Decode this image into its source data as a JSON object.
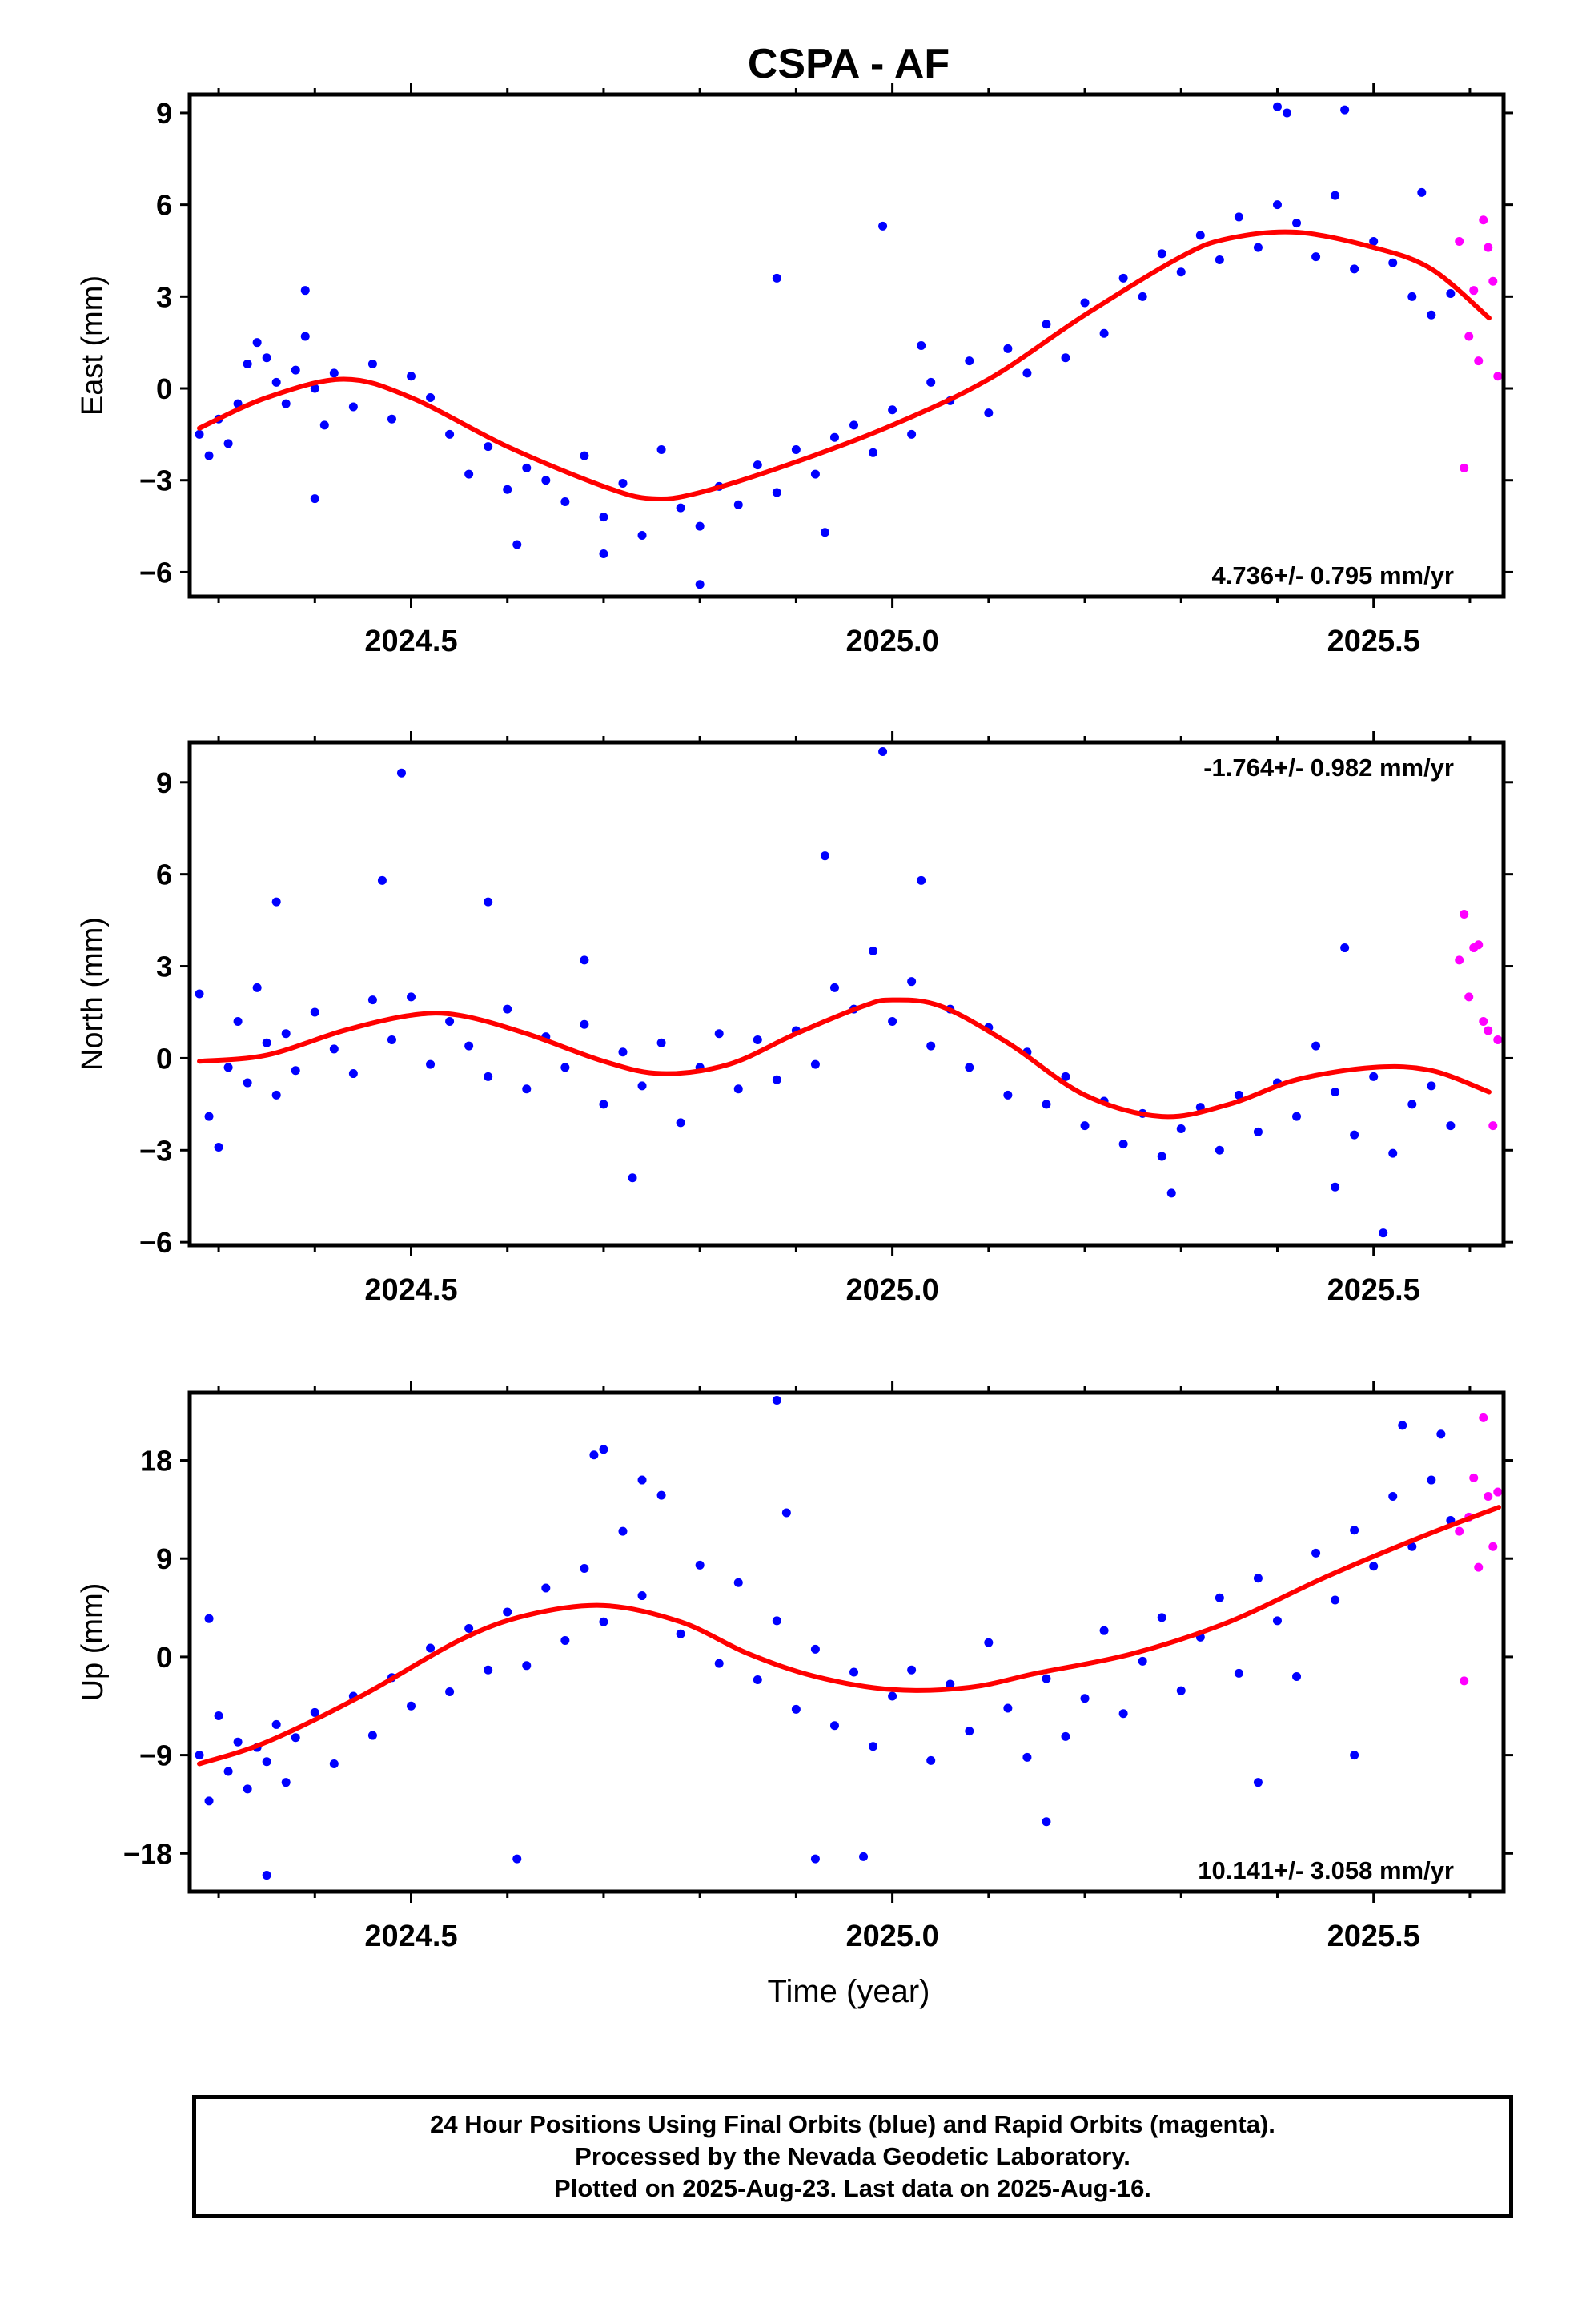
{
  "title": "CSPA - AF",
  "xlabel": "Time (year)",
  "caption": {
    "line1": "24 Hour Positions Using Final Orbits (blue) and Rapid Orbits (magenta).",
    "line2": "Processed by the Nevada Geodetic Laboratory.",
    "line3": "Plotted on 2025-Aug-23. Last data on 2025-Aug-16."
  },
  "colors": {
    "final": "#0000ff",
    "rapid": "#ff00ff",
    "model": "#ff0000",
    "axes": "#000000"
  },
  "chart_data": [
    {
      "type": "scatter",
      "ylabel": "East (mm)",
      "xlim": [
        2024.27,
        2025.635
      ],
      "ylim": [
        -6.8,
        9.6
      ],
      "xticks": [
        2024.5,
        2025.0,
        2025.5
      ],
      "xtick_labels": [
        "2024.5",
        "2025.0",
        "2025.5"
      ],
      "yticks": [
        -6,
        -3,
        0,
        3,
        6,
        9
      ],
      "ytick_labels": [
        "−6",
        "−3",
        "0",
        "3",
        "6",
        "9"
      ],
      "rate_label": "4.736+/- 0.795 mm/yr",
      "rate_position": "bottom-right",
      "model": {
        "x": [
          2024.28,
          2024.35,
          2024.43,
          2024.5,
          2024.6,
          2024.7,
          2024.75,
          2024.8,
          2024.9,
          2025.0,
          2025.1,
          2025.2,
          2025.3,
          2025.35,
          2025.42,
          2025.5,
          2025.56,
          2025.62
        ],
        "y": [
          -1.3,
          -0.3,
          0.3,
          -0.3,
          -1.9,
          -3.2,
          -3.6,
          -3.4,
          -2.4,
          -1.2,
          0.3,
          2.4,
          4.3,
          4.9,
          5.1,
          4.6,
          3.9,
          2.3
        ]
      },
      "series": [
        {
          "name": "Final Orbits",
          "x": [
            2024.28,
            2024.29,
            2024.3,
            2024.31,
            2024.32,
            2024.33,
            2024.34,
            2024.35,
            2024.36,
            2024.37,
            2024.38,
            2024.39,
            2024.4,
            2024.41,
            2024.42,
            2024.44,
            2024.46,
            2024.48,
            2024.5,
            2024.52,
            2024.54,
            2024.56,
            2024.58,
            2024.6,
            2024.62,
            2024.64,
            2024.66,
            2024.68,
            2024.7,
            2024.72,
            2024.74,
            2024.76,
            2024.78,
            2024.8,
            2024.82,
            2024.84,
            2024.86,
            2024.88,
            2024.9,
            2024.92,
            2024.94,
            2024.96,
            2024.98,
            2025.0,
            2025.02,
            2025.04,
            2025.06,
            2025.08,
            2025.1,
            2025.12,
            2025.14,
            2025.16,
            2025.18,
            2025.2,
            2025.22,
            2025.24,
            2025.26,
            2025.28,
            2025.3,
            2025.32,
            2025.34,
            2025.36,
            2025.38,
            2025.4,
            2025.42,
            2025.44,
            2025.46,
            2025.48,
            2025.5,
            2025.52,
            2025.54,
            2025.56,
            2025.58,
            2024.4,
            2024.39,
            2024.61,
            2024.7,
            2024.8,
            2024.99,
            2025.03,
            2025.4,
            2025.41,
            2025.47,
            2025.55,
            2024.88,
            2024.93
          ],
          "y": [
            -1.5,
            -2.2,
            -1.0,
            -1.8,
            -0.5,
            0.8,
            1.5,
            1.0,
            0.2,
            -0.5,
            0.6,
            1.7,
            0.0,
            -1.2,
            0.5,
            -0.6,
            0.8,
            -1.0,
            0.4,
            -0.3,
            -1.5,
            -2.8,
            -1.9,
            -3.3,
            -2.6,
            -3.0,
            -3.7,
            -2.2,
            -4.2,
            -3.1,
            -4.8,
            -2.0,
            -3.9,
            -4.5,
            -3.2,
            -3.8,
            -2.5,
            -3.4,
            -2.0,
            -2.8,
            -1.6,
            -1.2,
            -2.1,
            -0.7,
            -1.5,
            0.2,
            -0.4,
            0.9,
            -0.8,
            1.3,
            0.5,
            2.1,
            1.0,
            2.8,
            1.8,
            3.6,
            3.0,
            4.4,
            3.8,
            5.0,
            4.2,
            5.6,
            4.6,
            6.0,
            5.4,
            4.3,
            6.3,
            3.9,
            4.8,
            4.1,
            3.0,
            2.4,
            3.1,
            -3.6,
            3.2,
            -5.1,
            -5.4,
            -6.4,
            5.3,
            1.4,
            9.2,
            9.0,
            9.1,
            6.4,
            3.6,
            -4.7
          ]
        },
        {
          "name": "Rapid Orbits",
          "x": [
            2025.589,
            2025.594,
            2025.599,
            2025.604,
            2025.609,
            2025.614,
            2025.619,
            2025.624,
            2025.629
          ],
          "y": [
            4.8,
            -2.6,
            1.7,
            3.2,
            0.9,
            5.5,
            4.6,
            3.5,
            0.4
          ]
        }
      ]
    },
    {
      "type": "scatter",
      "ylabel": "North (mm)",
      "xlim": [
        2024.27,
        2025.635
      ],
      "ylim": [
        -6.1,
        10.3
      ],
      "xticks": [
        2024.5,
        2025.0,
        2025.5
      ],
      "xtick_labels": [
        "2024.5",
        "2025.0",
        "2025.5"
      ],
      "yticks": [
        -6,
        -3,
        0,
        3,
        6,
        9
      ],
      "ytick_labels": [
        "−6",
        "−3",
        "0",
        "3",
        "6",
        "9"
      ],
      "rate_label": "-1.764+/- 0.982 mm/yr",
      "rate_position": "top-right",
      "model": {
        "x": [
          2024.28,
          2024.35,
          2024.43,
          2024.5,
          2024.55,
          2024.62,
          2024.7,
          2024.76,
          2024.83,
          2024.9,
          2024.97,
          2025.0,
          2025.05,
          2025.12,
          2025.2,
          2025.28,
          2025.35,
          2025.42,
          2025.5,
          2025.56,
          2025.62
        ],
        "y": [
          -0.1,
          0.1,
          0.9,
          1.4,
          1.4,
          0.8,
          -0.1,
          -0.5,
          -0.2,
          0.8,
          1.7,
          1.9,
          1.7,
          0.5,
          -1.2,
          -1.9,
          -1.5,
          -0.7,
          -0.3,
          -0.4,
          -1.1
        ]
      },
      "series": [
        {
          "name": "Final Orbits",
          "x": [
            2024.28,
            2024.29,
            2024.3,
            2024.31,
            2024.32,
            2024.33,
            2024.34,
            2024.35,
            2024.36,
            2024.37,
            2024.38,
            2024.4,
            2024.42,
            2024.44,
            2024.46,
            2024.48,
            2024.5,
            2024.52,
            2024.54,
            2024.56,
            2024.58,
            2024.6,
            2024.62,
            2024.64,
            2024.66,
            2024.68,
            2024.7,
            2024.72,
            2024.74,
            2024.76,
            2024.78,
            2024.8,
            2024.82,
            2024.84,
            2024.86,
            2024.88,
            2024.9,
            2024.92,
            2024.94,
            2024.96,
            2024.98,
            2025.0,
            2025.02,
            2025.04,
            2025.06,
            2025.08,
            2025.1,
            2025.12,
            2025.14,
            2025.16,
            2025.18,
            2025.2,
            2025.22,
            2025.24,
            2025.26,
            2025.28,
            2025.3,
            2025.32,
            2025.34,
            2025.36,
            2025.38,
            2025.4,
            2025.42,
            2025.44,
            2025.46,
            2025.48,
            2025.5,
            2025.52,
            2025.54,
            2025.56,
            2025.58,
            2024.49,
            2024.47,
            2024.36,
            2024.58,
            2024.68,
            2024.73,
            2024.93,
            2024.99,
            2025.03,
            2025.29,
            2025.46,
            2025.51,
            2025.47
          ],
          "y": [
            2.1,
            -1.9,
            -2.9,
            -0.3,
            1.2,
            -0.8,
            2.3,
            0.5,
            -1.2,
            0.8,
            -0.4,
            1.5,
            0.3,
            -0.5,
            1.9,
            0.6,
            2.0,
            -0.2,
            1.2,
            0.4,
            -0.6,
            1.6,
            -1.0,
            0.7,
            -0.3,
            1.1,
            -1.5,
            0.2,
            -0.9,
            0.5,
            -2.1,
            -0.3,
            0.8,
            -1.0,
            0.6,
            -0.7,
            0.9,
            -0.2,
            2.3,
            1.6,
            3.5,
            1.2,
            2.5,
            0.4,
            1.6,
            -0.3,
            1.0,
            -1.2,
            0.2,
            -1.5,
            -0.6,
            -2.2,
            -1.4,
            -2.8,
            -1.8,
            -3.2,
            -2.3,
            -1.6,
            -3.0,
            -1.2,
            -2.4,
            -0.8,
            -1.9,
            0.4,
            -1.1,
            -2.5,
            -0.6,
            -3.1,
            -1.5,
            -0.9,
            -2.2,
            9.3,
            5.8,
            5.1,
            5.1,
            3.2,
            -3.9,
            6.6,
            10.0,
            5.8,
            -4.4,
            -4.2,
            -5.7,
            3.6
          ]
        },
        {
          "name": "Rapid Orbits",
          "x": [
            2025.589,
            2025.594,
            2025.599,
            2025.604,
            2025.609,
            2025.614,
            2025.619,
            2025.624,
            2025.629
          ],
          "y": [
            3.2,
            4.7,
            2.0,
            3.6,
            3.7,
            1.2,
            0.9,
            -2.2,
            0.6
          ]
        }
      ]
    },
    {
      "type": "scatter",
      "ylabel": "Up (mm)",
      "xlim": [
        2024.27,
        2025.635
      ],
      "ylim": [
        -21.5,
        24.2
      ],
      "xticks": [
        2024.5,
        2025.0,
        2025.5
      ],
      "xtick_labels": [
        "2024.5",
        "2025.0",
        "2025.5"
      ],
      "yticks": [
        -18,
        -9,
        0,
        9,
        18
      ],
      "ytick_labels": [
        "−18",
        "−9",
        "0",
        "9",
        "18"
      ],
      "rate_label": "10.141+/- 3.058 mm/yr",
      "rate_position": "bottom-right",
      "model": {
        "x": [
          2024.28,
          2024.35,
          2024.45,
          2024.55,
          2024.62,
          2024.7,
          2024.78,
          2024.85,
          2024.92,
          2025.0,
          2025.08,
          2025.15,
          2025.25,
          2025.35,
          2025.45,
          2025.55,
          2025.63
        ],
        "y": [
          -9.8,
          -7.8,
          -3.5,
          1.5,
          3.8,
          4.7,
          3.2,
          0.3,
          -1.8,
          -3.0,
          -2.8,
          -1.5,
          0.3,
          3.2,
          7.3,
          11.0,
          13.7
        ]
      },
      "series": [
        {
          "name": "Final Orbits",
          "x": [
            2024.28,
            2024.29,
            2024.3,
            2024.31,
            2024.32,
            2024.33,
            2024.34,
            2024.35,
            2024.36,
            2024.37,
            2024.38,
            2024.4,
            2024.42,
            2024.44,
            2024.46,
            2024.48,
            2024.5,
            2024.52,
            2024.54,
            2024.56,
            2024.58,
            2024.6,
            2024.62,
            2024.64,
            2024.66,
            2024.68,
            2024.7,
            2024.72,
            2024.74,
            2024.76,
            2024.78,
            2024.8,
            2024.82,
            2024.84,
            2024.86,
            2024.88,
            2024.9,
            2024.92,
            2024.94,
            2024.96,
            2024.98,
            2025.0,
            2025.02,
            2025.04,
            2025.06,
            2025.08,
            2025.1,
            2025.12,
            2025.14,
            2025.16,
            2025.18,
            2025.2,
            2025.22,
            2025.24,
            2025.26,
            2025.28,
            2025.3,
            2025.32,
            2025.34,
            2025.36,
            2025.38,
            2025.4,
            2025.42,
            2025.44,
            2025.46,
            2025.48,
            2025.5,
            2025.52,
            2025.54,
            2025.56,
            2025.58,
            2024.29,
            2024.35,
            2024.61,
            2024.69,
            2024.7,
            2024.74,
            2024.88,
            2024.89,
            2024.92,
            2024.97,
            2025.16,
            2025.38,
            2025.48,
            2025.53,
            2025.57
          ],
          "y": [
            -9.0,
            -13.2,
            -5.4,
            -10.5,
            -7.8,
            -12.1,
            -8.3,
            -9.6,
            -6.2,
            -11.5,
            -7.4,
            -5.1,
            -9.8,
            -3.6,
            -7.2,
            -1.9,
            -4.5,
            0.8,
            -3.2,
            2.6,
            -1.2,
            4.1,
            -0.8,
            6.3,
            1.5,
            8.1,
            3.2,
            11.5,
            5.6,
            14.8,
            2.1,
            8.4,
            -0.6,
            6.8,
            -2.1,
            3.3,
            -4.8,
            0.7,
            -6.3,
            -1.4,
            -8.2,
            -3.6,
            -1.2,
            -9.5,
            -2.5,
            -6.8,
            1.3,
            -4.7,
            -9.2,
            -2.0,
            -7.3,
            -3.8,
            2.4,
            -5.2,
            -0.4,
            3.6,
            -3.1,
            1.8,
            5.4,
            -1.5,
            7.2,
            3.3,
            -1.8,
            9.5,
            5.2,
            11.6,
            8.3,
            14.7,
            10.1,
            16.2,
            12.5,
            3.5,
            -20.0,
            -18.5,
            18.5,
            19.0,
            16.2,
            23.5,
            13.2,
            -18.5,
            -18.3,
            -15.1,
            -11.5,
            -9.0,
            21.2,
            20.4
          ]
        },
        {
          "name": "Rapid Orbits",
          "x": [
            2025.589,
            2025.594,
            2025.599,
            2025.604,
            2025.609,
            2025.614,
            2025.619,
            2025.624,
            2025.629
          ],
          "y": [
            11.5,
            -2.2,
            12.8,
            16.4,
            8.2,
            21.9,
            14.7,
            10.1,
            15.1
          ]
        }
      ]
    }
  ]
}
